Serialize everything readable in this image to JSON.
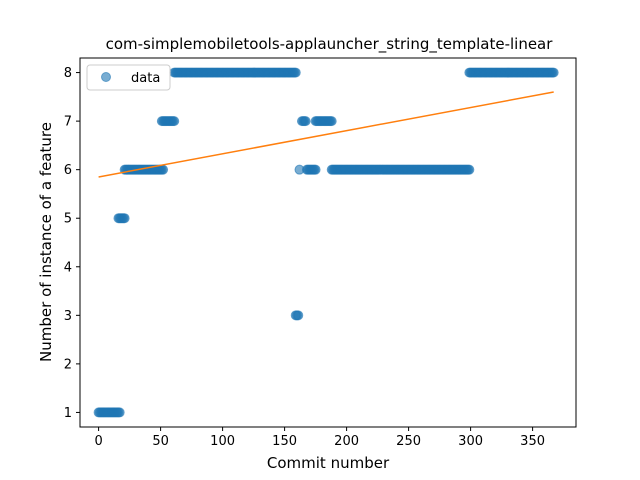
{
  "chart_data": {
    "type": "scatter",
    "title": "com-simplemobiletools-applauncher_string_template-linear",
    "xlabel": "Commit number",
    "ylabel": "Number of instance of a feature",
    "xlim": [
      -15,
      385
    ],
    "ylim": [
      0.7,
      8.3
    ],
    "xticks": [
      0,
      50,
      100,
      150,
      200,
      250,
      300,
      350
    ],
    "yticks": [
      1,
      2,
      3,
      4,
      5,
      6,
      7,
      8
    ],
    "grid": false,
    "legend": {
      "position": "top-left",
      "entries": [
        "data"
      ]
    },
    "series": [
      {
        "name": "data",
        "kind": "points",
        "color": "#1f77b4",
        "segments": [
          {
            "x_start": 0,
            "x_end": 17,
            "y": 1
          },
          {
            "x_start": 16,
            "x_end": 21,
            "y": 5
          },
          {
            "x_start": 21,
            "x_end": 52,
            "y": 6
          },
          {
            "x_start": 51,
            "x_end": 61,
            "y": 7
          },
          {
            "x_start": 61,
            "x_end": 159,
            "y": 8
          },
          {
            "x_start": 159,
            "x_end": 161,
            "y": 3
          },
          {
            "x_start": 162,
            "x_end": 162,
            "y": 6
          },
          {
            "x_start": 164,
            "x_end": 167,
            "y": 7
          },
          {
            "x_start": 168,
            "x_end": 175,
            "y": 6
          },
          {
            "x_start": 175,
            "x_end": 188,
            "y": 7
          },
          {
            "x_start": 188,
            "x_end": 299,
            "y": 6
          },
          {
            "x_start": 299,
            "x_end": 367,
            "y": 8
          }
        ]
      },
      {
        "name": "",
        "kind": "fit-line",
        "color": "#ff7f0e",
        "x": [
          0,
          367
        ],
        "y": [
          5.85,
          7.6
        ]
      }
    ]
  }
}
